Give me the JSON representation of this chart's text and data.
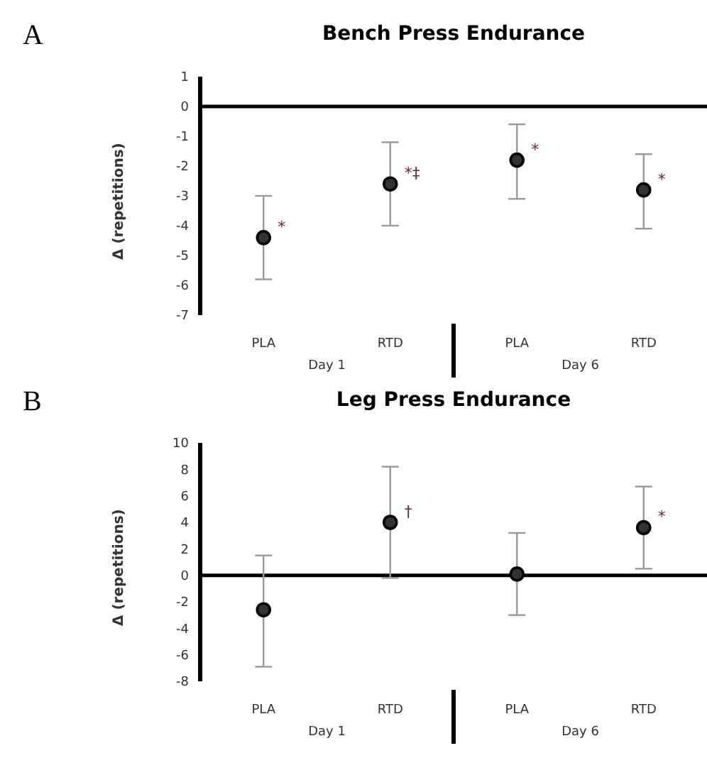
{
  "chart_data": [
    {
      "type": "scatter",
      "title": "Bench Press Endurance",
      "ylabel": "Δ (repetitions)",
      "categories": [
        "PLA",
        "RTD",
        "PLA",
        "RTD"
      ],
      "series": [
        {
          "color": "#333333",
          "values": [
            -4.4,
            -2.6,
            -1.8,
            -2.8
          ],
          "errors": [
            [
              -5.8,
              -3.0
            ],
            [
              -4.0,
              -1.2
            ],
            [
              -3.1,
              -0.6
            ],
            [
              -4.1,
              -1.6
            ]
          ],
          "value_labels": [
            "*",
            "*‡",
            "*",
            "*"
          ]
        }
      ],
      "ylim": [
        -7,
        1
      ],
      "yticks": [
        -7,
        -6,
        -5,
        -4,
        -3,
        -2,
        -1,
        0,
        1
      ],
      "marker": "circle",
      "grid": false,
      "legend": false,
      "ref_lines": [
        {
          "axis": "y",
          "value": 0,
          "color": "#000000"
        }
      ],
      "annotations": [
        "A",
        "Day 1",
        "Day 6"
      ]
    },
    {
      "type": "scatter",
      "title": "Leg Press Endurance",
      "ylabel": "Δ (repetitions)",
      "categories": [
        "PLA",
        "RTD",
        "PLA",
        "RTD"
      ],
      "series": [
        {
          "color": "#333333",
          "values": [
            -2.6,
            4.0,
            0.1,
            3.6
          ],
          "errors": [
            [
              -6.9,
              1.5
            ],
            [
              -0.2,
              8.2
            ],
            [
              -3.0,
              3.2
            ],
            [
              0.5,
              6.7
            ]
          ],
          "value_labels": [
            null,
            "†",
            null,
            "*"
          ]
        }
      ],
      "ylim": [
        -8,
        10
      ],
      "yticks": [
        -8,
        -6,
        -4,
        -2,
        0,
        2,
        4,
        6,
        8,
        10
      ],
      "marker": "circle",
      "grid": false,
      "legend": false,
      "ref_lines": [
        {
          "axis": "y",
          "value": 0,
          "color": "#000000"
        }
      ],
      "annotations": [
        "B",
        "Day 1",
        "Day 6"
      ]
    }
  ]
}
